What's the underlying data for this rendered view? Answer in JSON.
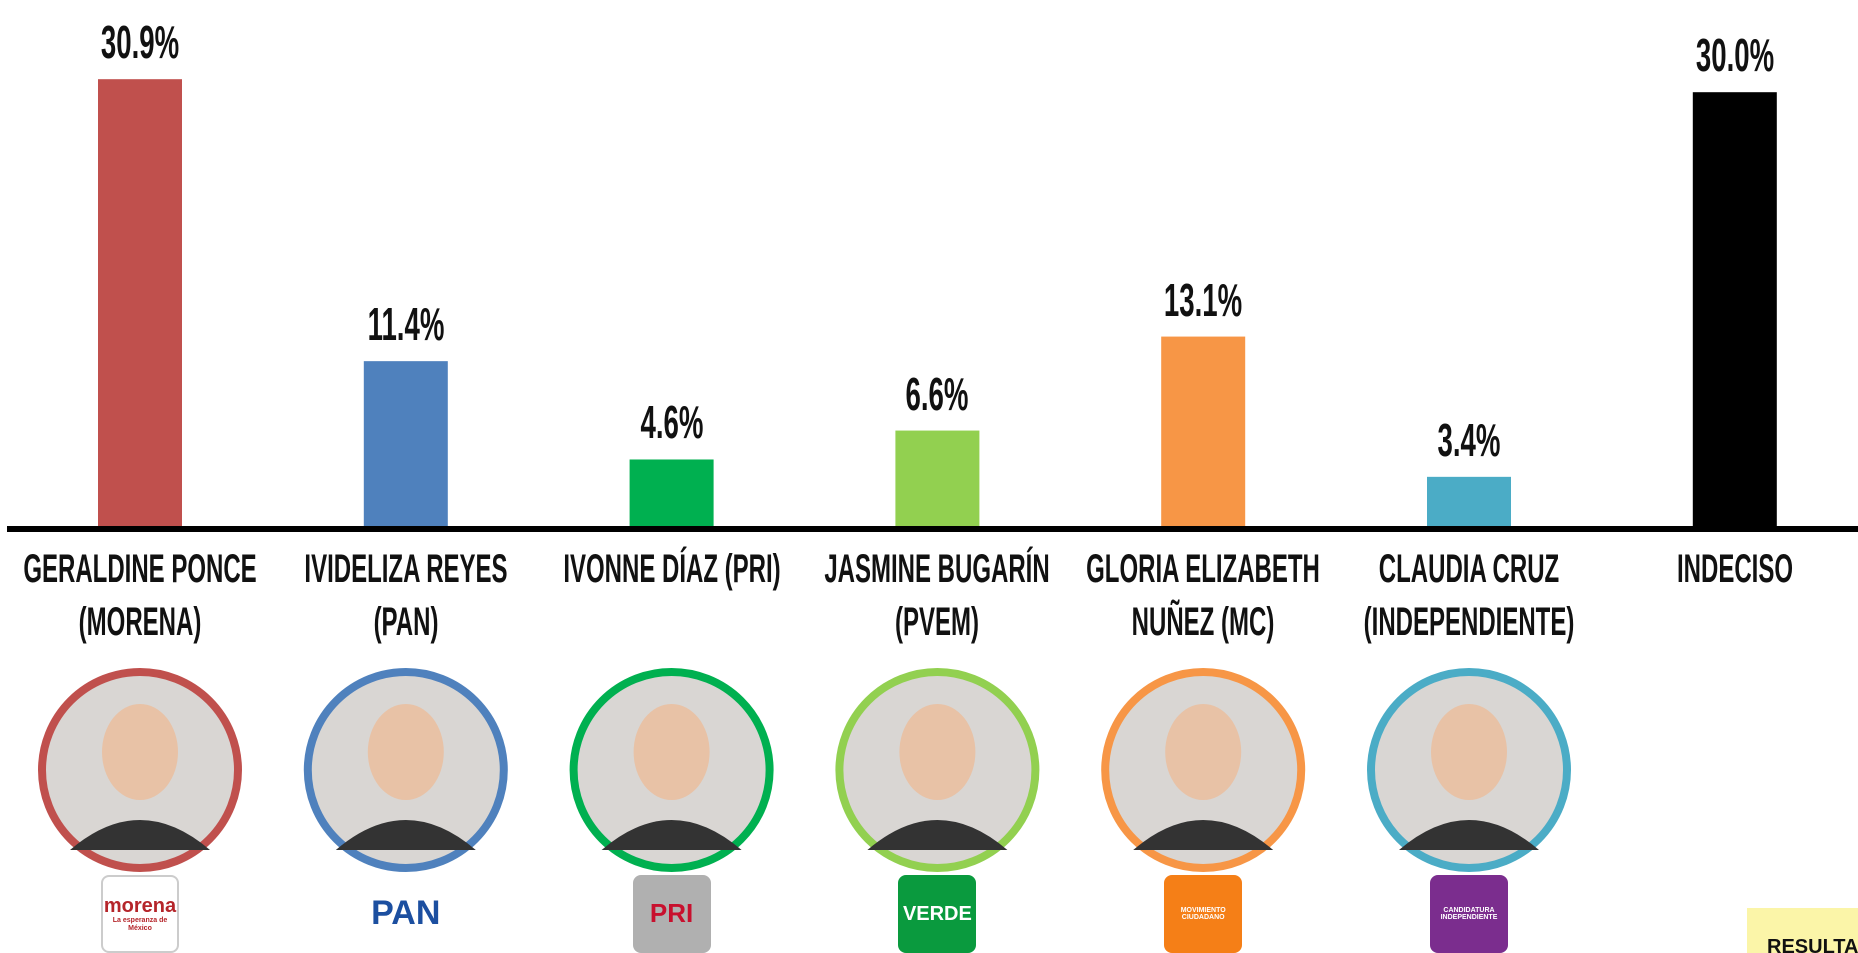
{
  "chart_data": {
    "type": "bar",
    "categories": [
      "GERALDINE PONCE\n(MORENA)",
      "IVIDELIZA REYES\n(PAN)",
      "IVONNE DÍAZ (PRI)",
      "JASMINE BUGARÍN\n(PVEM)",
      "GLORIA ELIZABETH\nNUÑEZ (MC)",
      "CLAUDIA CRUZ\n(INDEPENDIENTE)",
      "INDECISO"
    ],
    "values": [
      30.9,
      11.4,
      4.6,
      6.6,
      13.1,
      3.4,
      30.0
    ],
    "value_labels": [
      "30.9%",
      "11.4%",
      "4.6%",
      "6.6%",
      "13.1%",
      "3.4%",
      "30.0%"
    ],
    "colors": [
      "#c0504d",
      "#4f81bd",
      "#00b050",
      "#92d050",
      "#f79646",
      "#4bacc6",
      "#000000"
    ],
    "logos": [
      [
        "morena",
        "La esperanza de México"
      ],
      [
        "PAN"
      ],
      [
        "PRI"
      ],
      [
        "VERDE"
      ],
      [
        "MOVIMIENTO",
        "CIUDADANO"
      ],
      [
        "CANDIDATURA",
        "INDEPENDIENTE"
      ]
    ],
    "note": "RESULTA"
  }
}
